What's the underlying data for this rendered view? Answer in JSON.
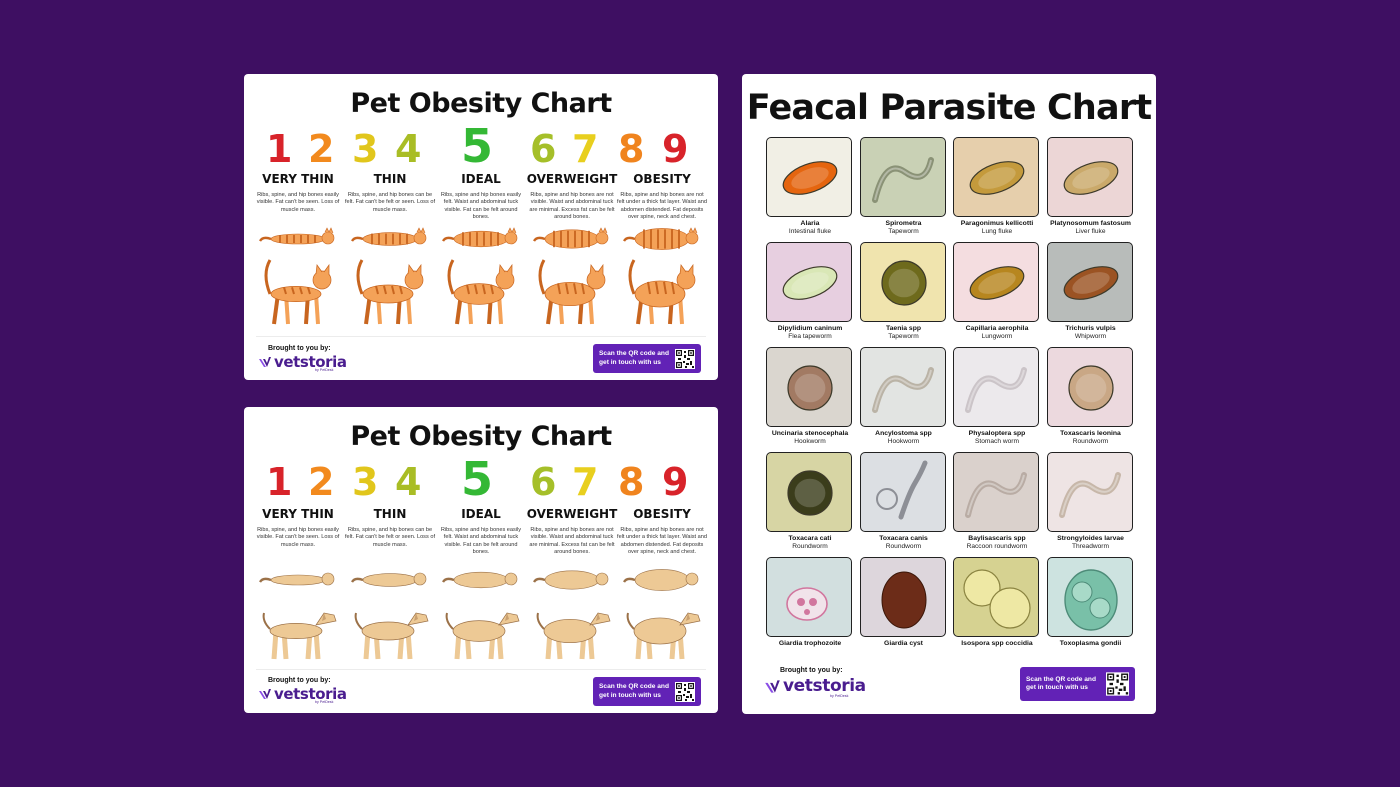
{
  "obesity_chart": {
    "title": "Pet Obesity Chart",
    "numbers": [
      {
        "value": "1",
        "color": "#d8232a"
      },
      {
        "value": "2",
        "color": "#f28a1e"
      },
      {
        "value": "3",
        "color": "#e1c61c"
      },
      {
        "value": "4",
        "color": "#a9bd25"
      },
      {
        "value": "5",
        "color": "#34b835"
      },
      {
        "value": "6",
        "color": "#a5bf29"
      },
      {
        "value": "7",
        "color": "#e8cf1e"
      },
      {
        "value": "8",
        "color": "#f0841e"
      },
      {
        "value": "9",
        "color": "#d8232a"
      }
    ],
    "categories": [
      "VERY THIN",
      "THIN",
      "IDEAL",
      "OVERWEIGHT",
      "OBESITY"
    ],
    "descriptions": [
      "Ribs, spine, and hip bones easily visible. Fat can't be seen. Loss of muscle mass.",
      "Ribs, spine, and hip bones can be felt. Fat can't be felt or seen. Loss of muscle mass.",
      "Ribs, spine and hip bones easily felt. Waist and abdominal tuck visible. Fat can be felt around bones.",
      "Ribs, spine and hip bones are not visible. Waist and abdominal tuck are minimal. Excess fat can be felt around bones.",
      "Ribs, spine and hip bones are not felt under a thick fat layer. Waist and abdomen distended. Fat deposits over spine, neck and chest."
    ],
    "footer": {
      "brought_by": "Brought to you by:",
      "brand": "vetstoria",
      "brand_sub": "by PetDesk",
      "qr_text": "Scan the QR code and get in touch with us"
    },
    "colors": {
      "cat": "#f4a258",
      "cat_stripe": "#c8651f",
      "dog": "#edc995",
      "dog_outline": "#9b7148",
      "brand": "#4a1d8f",
      "button": "#6222b6"
    }
  },
  "parasite_chart": {
    "title": "Feacal Parasite Chart",
    "parasites": [
      {
        "name": "Alaria",
        "type": "Intestinal fluke",
        "bg": "#f1efe5",
        "egg": "#e5650f"
      },
      {
        "name": "Spirometra",
        "type": "Tapeworm",
        "bg": "#c9d1b5",
        "egg": "#8a9276"
      },
      {
        "name": "Paragonimus kellicotti",
        "type": "Lung fluke",
        "bg": "#e6cfac",
        "egg": "#c49a3c"
      },
      {
        "name": "Platynosomum fastosum",
        "type": "Liver fluke",
        "bg": "#ecd6d6",
        "egg": "#caa96a"
      },
      {
        "name": "Dipylidium caninum",
        "type": "Flea tapeworm",
        "bg": "#e7cfe0",
        "egg": "#d9e7b6"
      },
      {
        "name": "Taenia spp",
        "type": "Tapeworm",
        "bg": "#f0e4ae",
        "egg": "#6e6a1c"
      },
      {
        "name": "Capillaria aerophila",
        "type": "Lungworm",
        "bg": "#f4dde0",
        "egg": "#b7861f"
      },
      {
        "name": "Trichuris vulpis",
        "type": "Whipworm",
        "bg": "#b8bcba",
        "egg": "#9b5323"
      },
      {
        "name": "Uncinaria stenocephala",
        "type": "Hookworm",
        "bg": "#dad6cf",
        "egg": "#a27a63"
      },
      {
        "name": "Ancylostoma spp",
        "type": "Hookworm",
        "bg": "#e2e4e2",
        "egg": "#bab3a6"
      },
      {
        "name": "Physaloptera spp",
        "type": "Stomach worm",
        "bg": "#ece9ec",
        "egg": "#cbc4c8"
      },
      {
        "name": "Toxascaris leonina",
        "type": "Roundworm",
        "bg": "#ecd9de",
        "egg": "#c9a785"
      },
      {
        "name": "Toxacara cati",
        "type": "Roundworm",
        "bg": "#d7d5a4",
        "egg": "#3b3d1b"
      },
      {
        "name": "Toxacara canis",
        "type": "Roundworm",
        "bg": "#dcdfe3",
        "egg": "#8d8f96"
      },
      {
        "name": "Baylisascaris spp",
        "type": "Raccoon roundworm",
        "bg": "#dad1cc",
        "egg": "#b9aca4"
      },
      {
        "name": "Strongyloides larvae",
        "type": "Threadworm",
        "bg": "#eee4e4",
        "egg": "#c7b7a9"
      },
      {
        "name": "Giardia trophozoite",
        "type": "",
        "bg": "#d2dfdf",
        "egg": "#d1769e"
      },
      {
        "name": "Giardia cyst",
        "type": "",
        "bg": "#ddd6dc",
        "egg": "#6c2c18"
      },
      {
        "name": "Isospora spp coccidia",
        "type": "",
        "bg": "#d6d291",
        "egg": "#eee8a4"
      },
      {
        "name": "Toxoplasma gondii",
        "type": "",
        "bg": "#cde3e0",
        "egg": "#79c0a8"
      }
    ],
    "footer": {
      "brought_by": "Brought to you by:",
      "brand": "vetstoria",
      "brand_sub": "by PetDesk",
      "qr_text": "Scan the QR code and get in touch with us"
    }
  }
}
